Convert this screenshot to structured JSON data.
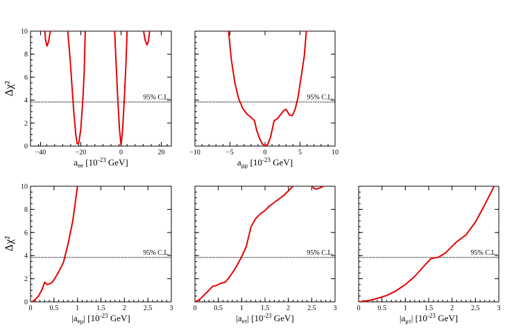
{
  "ylabel": "Δχ²",
  "chart_data": [
    {
      "type": "line",
      "xlabel": "a_ee [10^-23 GeV]",
      "xlabel_main": "a",
      "xlabel_sub": "ee",
      "xlabel_unit": " [10",
      "xlabel_exp": "-23",
      "xlabel_unit2": " GeV]",
      "xlim": [
        -45,
        25
      ],
      "ylim": [
        0,
        10
      ],
      "xticks": [
        -40,
        -20,
        0,
        20
      ],
      "xtick_labels": [
        "−40",
        "−20",
        "0",
        "20"
      ],
      "yticks": [
        0,
        2,
        4,
        6,
        8,
        10
      ],
      "ytick_labels": [
        "0",
        "2",
        "4",
        "6",
        "8",
        "10"
      ],
      "show_yticklabels": true,
      "cl_value": 3.84,
      "cl_label": "95% C.L.",
      "segments": [
        [
          [
            -37.9,
            10
          ],
          [
            -37.5,
            9.2
          ],
          [
            -36.8,
            8.7
          ],
          [
            -36,
            9.1
          ],
          [
            -35.2,
            10
          ]
        ],
        [
          [
            -26.5,
            10
          ],
          [
            -25.5,
            8.0
          ],
          [
            -24.5,
            5.5
          ],
          [
            -23.5,
            3.0
          ],
          [
            -22.5,
            1.0
          ],
          [
            -21.8,
            0.2
          ],
          [
            -21.0,
            0.25
          ],
          [
            -20.0,
            1.5
          ],
          [
            -19.0,
            4.0
          ],
          [
            -18.3,
            6.5
          ],
          [
            -17.8,
            10
          ]
        ],
        [
          [
            -3.2,
            10
          ],
          [
            -2.4,
            7.0
          ],
          [
            -1.6,
            4.0
          ],
          [
            -0.8,
            1.5
          ],
          [
            0,
            0.05
          ],
          [
            0.8,
            1.5
          ],
          [
            1.6,
            4.0
          ],
          [
            2.4,
            7.0
          ],
          [
            3.0,
            10
          ]
        ],
        [
          [
            11.2,
            10
          ],
          [
            12.0,
            9.2
          ],
          [
            12.9,
            8.8
          ],
          [
            13.6,
            9.1
          ],
          [
            14.2,
            10
          ]
        ]
      ]
    },
    {
      "type": "line",
      "xlabel": "a_μμ [10^-23 GeV]",
      "xlabel_main": "a",
      "xlabel_sub": "μμ",
      "xlabel_unit": " [10",
      "xlabel_exp": "-23",
      "xlabel_unit2": " GeV]",
      "xlim": [
        -10,
        10
      ],
      "ylim": [
        0,
        10
      ],
      "xticks": [
        -10,
        -5,
        0,
        5,
        10
      ],
      "xtick_labels": [
        "−10",
        "−5",
        "0",
        "5",
        "10"
      ],
      "yticks": [
        0,
        2,
        4,
        6,
        8,
        10
      ],
      "ytick_labels": [],
      "show_yticklabels": false,
      "cl_value": 3.84,
      "cl_label": "95% C.L.",
      "segments": [
        [
          [
            -5.2,
            10
          ],
          [
            -4.8,
            7.5
          ],
          [
            -4.3,
            5.5
          ],
          [
            -3.8,
            4.2
          ],
          [
            -3.2,
            3.3
          ],
          [
            -2.6,
            2.8
          ],
          [
            -1.9,
            2.45
          ],
          [
            -1.5,
            2.2
          ],
          [
            -1.2,
            1.4
          ],
          [
            -0.8,
            0.7
          ],
          [
            -0.4,
            0.2
          ],
          [
            0,
            0
          ],
          [
            0.4,
            0.15
          ],
          [
            0.8,
            0.8
          ],
          [
            1.3,
            2.2
          ],
          [
            1.8,
            2.4
          ],
          [
            2.3,
            2.8
          ],
          [
            2.7,
            3.1
          ],
          [
            3.0,
            3.2
          ],
          [
            3.5,
            2.7
          ],
          [
            3.9,
            2.65
          ],
          [
            4.3,
            3.2
          ],
          [
            4.7,
            4.2
          ],
          [
            5.1,
            5.8
          ],
          [
            5.6,
            7.8
          ],
          [
            5.9,
            10
          ]
        ]
      ]
    },
    {
      "type": "line",
      "xlabel": "|a_eμ| [10^-23 GeV]",
      "xlabel_main": "|a",
      "xlabel_sub": "eμ",
      "xlabel_post": "|",
      "xlabel_unit": " [10",
      "xlabel_exp": "-23",
      "xlabel_unit2": " GeV]",
      "xlim": [
        0,
        3
      ],
      "ylim": [
        0,
        10
      ],
      "xticks": [
        0,
        0.5,
        1,
        1.5,
        2,
        2.5,
        3
      ],
      "xtick_labels": [
        "0",
        "0.5",
        "1",
        "1.5",
        "2",
        "2.5",
        "3"
      ],
      "yticks": [
        0,
        2,
        4,
        6,
        8,
        10
      ],
      "ytick_labels": [
        "0",
        "2",
        "4",
        "6",
        "8",
        "10"
      ],
      "show_yticklabels": true,
      "cl_value": 3.84,
      "cl_label": "95% C.L.",
      "segments": [
        [
          [
            0,
            0
          ],
          [
            0.05,
            0.05
          ],
          [
            0.1,
            0.2
          ],
          [
            0.17,
            0.5
          ],
          [
            0.25,
            1.1
          ],
          [
            0.3,
            1.7
          ],
          [
            0.35,
            1.5
          ],
          [
            0.4,
            1.55
          ],
          [
            0.45,
            1.65
          ],
          [
            0.5,
            1.9
          ],
          [
            0.6,
            2.6
          ],
          [
            0.7,
            3.4
          ],
          [
            0.8,
            5.0
          ],
          [
            0.9,
            7.0
          ],
          [
            1.0,
            10
          ]
        ]
      ]
    },
    {
      "type": "line",
      "xlabel": "|a_eτ| [10^-23 GeV]",
      "xlabel_main": "|a",
      "xlabel_sub": "eτ",
      "xlabel_post": "|",
      "xlabel_unit": " [10",
      "xlabel_exp": "-23",
      "xlabel_unit2": " GeV]",
      "xlim": [
        0,
        3
      ],
      "ylim": [
        0,
        10
      ],
      "xticks": [
        0,
        0.5,
        1,
        1.5,
        2,
        2.5,
        3
      ],
      "xtick_labels": [
        "0",
        "0.5",
        "1",
        "1.5",
        "2",
        "2.5",
        "3"
      ],
      "yticks": [
        0,
        2,
        4,
        6,
        8,
        10
      ],
      "ytick_labels": [],
      "show_yticklabels": false,
      "cl_value": 3.84,
      "cl_label": "95% C.L.",
      "segments": [
        [
          [
            0,
            0
          ],
          [
            0.1,
            0.2
          ],
          [
            0.2,
            0.6
          ],
          [
            0.3,
            1.0
          ],
          [
            0.38,
            1.35
          ],
          [
            0.45,
            1.4
          ],
          [
            0.55,
            1.6
          ],
          [
            0.65,
            1.7
          ],
          [
            0.75,
            2.2
          ],
          [
            0.85,
            2.8
          ],
          [
            0.92,
            3.3
          ],
          [
            1.0,
            3.9
          ],
          [
            1.1,
            4.8
          ],
          [
            1.2,
            6.5
          ],
          [
            1.3,
            7.2
          ],
          [
            1.4,
            7.6
          ],
          [
            1.5,
            7.9
          ],
          [
            1.6,
            8.3
          ],
          [
            1.7,
            8.6
          ],
          [
            1.8,
            8.9
          ],
          [
            1.9,
            9.2
          ],
          [
            2.0,
            9.6
          ],
          [
            2.1,
            10.0
          ],
          [
            2.2,
            10.2
          ],
          [
            2.5,
            10.1
          ],
          [
            2.55,
            9.8
          ],
          [
            2.6,
            9.75
          ],
          [
            2.7,
            9.9
          ],
          [
            2.75,
            10
          ]
        ]
      ]
    },
    {
      "type": "line",
      "xlabel": "|a_μτ| [10^-23 GeV]",
      "xlabel_main": "|a",
      "xlabel_sub": "μτ",
      "xlabel_post": "|",
      "xlabel_unit": " [10",
      "xlabel_exp": "-23",
      "xlabel_unit2": " GeV]",
      "xlim": [
        0,
        3
      ],
      "ylim": [
        0,
        10
      ],
      "xticks": [
        0,
        0.5,
        1,
        1.5,
        2,
        2.5,
        3
      ],
      "xtick_labels": [
        "0",
        "0.5",
        "1",
        "1.5",
        "2",
        "2.5",
        "3"
      ],
      "yticks": [
        0,
        2,
        4,
        6,
        8,
        10
      ],
      "ytick_labels": [],
      "show_yticklabels": false,
      "cl_value": 3.84,
      "cl_label": "95% C.L.",
      "segments": [
        [
          [
            0,
            0
          ],
          [
            0.2,
            0.1
          ],
          [
            0.4,
            0.3
          ],
          [
            0.6,
            0.55
          ],
          [
            0.8,
            0.95
          ],
          [
            1.0,
            1.5
          ],
          [
            1.2,
            2.2
          ],
          [
            1.4,
            3.1
          ],
          [
            1.55,
            3.75
          ],
          [
            1.7,
            3.85
          ],
          [
            1.85,
            4.2
          ],
          [
            2.0,
            4.8
          ],
          [
            2.1,
            5.2
          ],
          [
            2.3,
            5.8
          ],
          [
            2.5,
            6.9
          ],
          [
            2.7,
            8.4
          ],
          [
            2.85,
            9.6
          ],
          [
            2.9,
            10
          ]
        ]
      ]
    }
  ]
}
